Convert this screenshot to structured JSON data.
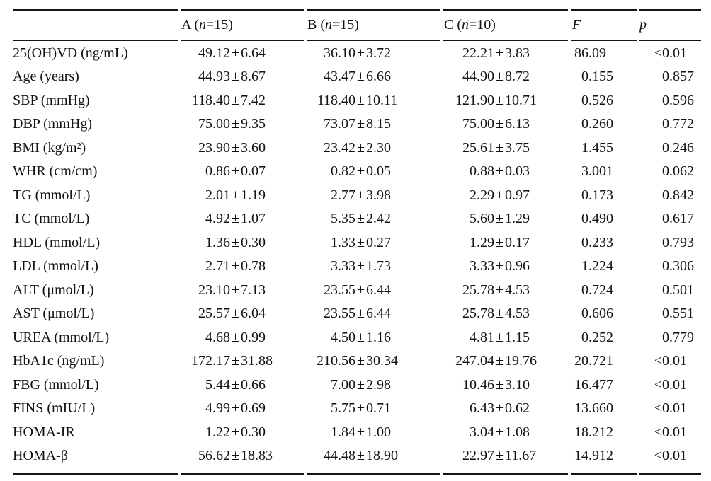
{
  "page": {
    "background": "#ffffff",
    "text_color": "#121212"
  },
  "table": {
    "header": {
      "blank_label": "",
      "groups": [
        {
          "label": "A (n=15)"
        },
        {
          "label": "B (n=15)"
        },
        {
          "label": "C (n=10)"
        }
      ],
      "stats": [
        "F",
        "p"
      ]
    },
    "rows": [
      {
        "param": "25(OH)VD (ng/mL)",
        "a": "49.12±6.64",
        "b": "36.10±3.72",
        "c": "22.21±3.83",
        "f": "86.09",
        "p": "<0.01"
      },
      {
        "param": "Age (years)",
        "a": "44.93±8.67",
        "b": "43.47±6.66",
        "c": "44.90±8.72",
        "f": "0.155",
        "p": "0.857"
      },
      {
        "param": "SBP (mmHg)",
        "a": "118.40±7.42",
        "b": "118.40±10.11",
        "c": "121.90±10.71",
        "f": "0.526",
        "p": "0.596"
      },
      {
        "param": "DBP (mmHg)",
        "a": "75.00±9.35",
        "b": "73.07±8.15",
        "c": "75.00±6.13",
        "f": "0.260",
        "p": "0.772"
      },
      {
        "param": "BMI (kg/m²)",
        "a": "23.90±3.60",
        "b": "23.42±2.30",
        "c": "25.61±3.75",
        "f": "1.455",
        "p": "0.246"
      },
      {
        "param": "WHR (cm/cm)",
        "a": "0.86±0.07",
        "b": "0.82±0.05",
        "c": "0.88±0.03",
        "f": "3.001",
        "p": "0.062"
      },
      {
        "param": "TG (mmol/L)",
        "a": "2.01±1.19",
        "b": "2.77±3.98",
        "c": "2.29±0.97",
        "f": "0.173",
        "p": "0.842"
      },
      {
        "param": "TC (mmol/L)",
        "a": "4.92±1.07",
        "b": "5.35±2.42",
        "c": "5.60±1.29",
        "f": "0.490",
        "p": "0.617"
      },
      {
        "param": "HDL (mmol/L)",
        "a": "1.36±0.30",
        "b": "1.33±0.27",
        "c": "1.29±0.17",
        "f": "0.233",
        "p": "0.793"
      },
      {
        "param": "LDL (mmol/L)",
        "a": "2.71±0.78",
        "b": "3.33±1.73",
        "c": "3.33±0.96",
        "f": "1.224",
        "p": "0.306"
      },
      {
        "param": "ALT (μmol/L)",
        "a": "23.10±7.13",
        "b": "23.55±6.44",
        "c": "25.78±4.53",
        "f": "0.724",
        "p": "0.501"
      },
      {
        "param": "AST (μmol/L)",
        "a": "25.57±6.04",
        "b": "23.55±6.44",
        "c": "25.78±4.53",
        "f": "0.606",
        "p": "0.551"
      },
      {
        "param": "UREA (mmol/L)",
        "a": "4.68±0.99",
        "b": "4.50±1.16",
        "c": "4.81±1.15",
        "f": "0.252",
        "p": "0.779"
      },
      {
        "param": "HbA1c (ng/mL)",
        "a": "172.17±31.88",
        "b": "210.56±30.34",
        "c": "247.04±19.76",
        "f": "20.721",
        "p": "<0.01"
      },
      {
        "param": "FBG (mmol/L)",
        "a": "5.44±0.66",
        "b": "7.00±2.98",
        "c": "10.46±3.10",
        "f": "16.477",
        "p": "<0.01"
      },
      {
        "param": "FINS (mIU/L)",
        "a": "4.99±0.69",
        "b": "5.75±0.71",
        "c": "6.43±0.62",
        "f": "13.660",
        "p": "<0.01"
      },
      {
        "param": "HOMA-IR",
        "a": "1.22±0.30",
        "b": "1.84±1.00",
        "c": "3.04±1.08",
        "f": "18.212",
        "p": "<0.01"
      },
      {
        "param": "HOMA-β",
        "a": "56.62±18.83",
        "b": "44.48±18.90",
        "c": "22.97±11.67",
        "f": "14.912",
        "p": "<0.01"
      }
    ]
  }
}
